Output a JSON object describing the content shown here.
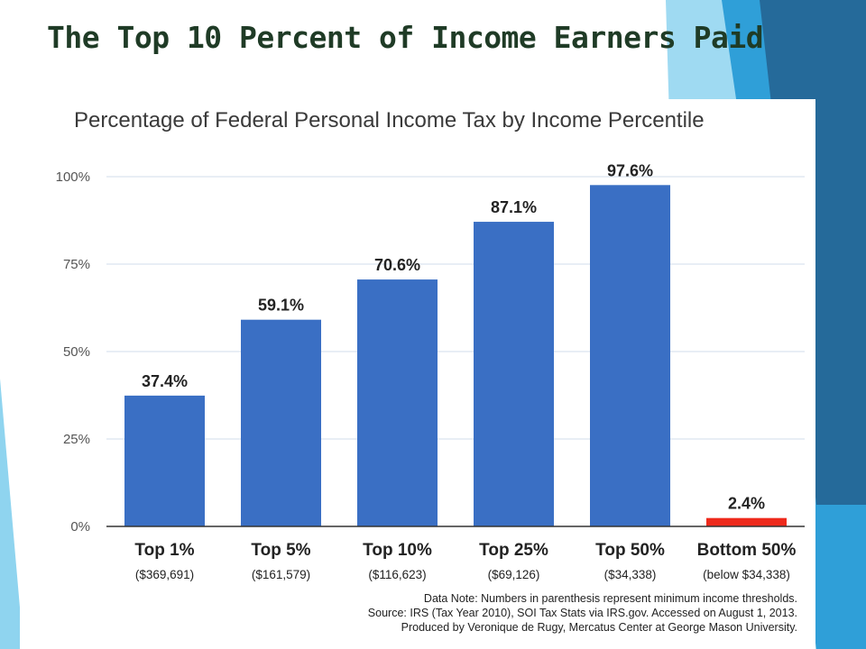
{
  "slide": {
    "title": "The Top 10 Percent of Income Earners Paid"
  },
  "chart_data": {
    "type": "bar",
    "title": "Percentage of Federal Personal Income Tax by Income Percentile",
    "categories": [
      "Top 1%",
      "Top 5%",
      "Top 10%",
      "Top 25%",
      "Top 50%",
      "Bottom 50%"
    ],
    "thresholds": [
      "($369,691)",
      "($161,579)",
      "($116,623)",
      "($69,126)",
      "($34,338)",
      "(below $34,338)"
    ],
    "values": [
      37.4,
      59.1,
      70.6,
      87.1,
      97.6,
      2.4
    ],
    "data_labels": [
      "37.4%",
      "59.1%",
      "70.6%",
      "87.1%",
      "97.6%",
      "2.4%"
    ],
    "bar_colors": [
      "#3a6fc4",
      "#3a6fc4",
      "#3a6fc4",
      "#3a6fc4",
      "#3a6fc4",
      "#ee2a1c"
    ],
    "ylim": [
      0,
      100
    ],
    "yticks": [
      0,
      25,
      50,
      75,
      100
    ],
    "ytick_labels": [
      "0%",
      "25%",
      "50%",
      "75%",
      "100%"
    ],
    "grid": true,
    "notes": [
      "Data Note: Numbers in parenthesis represent minimum income thresholds.",
      "Source: IRS (Tax Year 2010), SOI Tax Stats via IRS.gov. Accessed on August 1, 2013.",
      "Produced by Veronique de Rugy, Mercatus Center at George Mason University."
    ]
  },
  "colors": {
    "bar": "#3a6fc4",
    "bottom_bar": "#ee2a1c",
    "grid": "#d9e3ef",
    "theme_light": "#8fd4ef",
    "theme_mid": "#31a6dc",
    "theme_dark": "#256f9e"
  }
}
